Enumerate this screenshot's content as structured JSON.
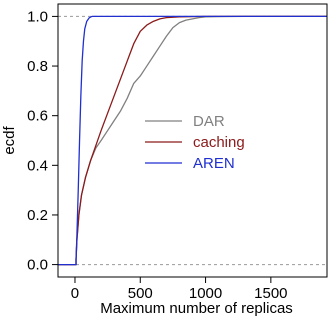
{
  "chart_data": {
    "type": "line",
    "xlabel": "Maximum number of replicas",
    "ylabel": "ecdf",
    "xlim": [
      -130,
      1930
    ],
    "ylim": [
      -0.05,
      1.05
    ],
    "x_ticks": [
      0,
      500,
      1000,
      1500
    ],
    "x_tick_labels": [
      "0",
      "500",
      "1000",
      "1500"
    ],
    "y_ticks": [
      0.0,
      0.2,
      0.4,
      0.6,
      0.8,
      1.0
    ],
    "y_tick_labels": [
      "0.0",
      "0.2",
      "0.4",
      "0.6",
      "0.8",
      "1.0"
    ],
    "reference_lines": [
      0,
      1
    ],
    "legend_position": "center-right",
    "series": [
      {
        "name": "DAR",
        "color": "#808080",
        "x": [
          -130,
          8,
          8,
          15,
          30,
          50,
          80,
          120,
          160,
          200,
          250,
          300,
          350,
          400,
          450,
          500,
          550,
          600,
          650,
          700,
          750,
          800,
          850,
          900,
          950,
          1000,
          1100,
          1300,
          1930
        ],
        "y": [
          0,
          0,
          0.02,
          0.1,
          0.2,
          0.28,
          0.35,
          0.42,
          0.47,
          0.5,
          0.54,
          0.58,
          0.62,
          0.67,
          0.73,
          0.76,
          0.8,
          0.84,
          0.88,
          0.92,
          0.955,
          0.975,
          0.985,
          0.99,
          0.995,
          0.998,
          0.999,
          1.0,
          1.0
        ]
      },
      {
        "name": "caching",
        "color": "#8b1a1a",
        "x": [
          -130,
          8,
          8,
          15,
          30,
          50,
          80,
          120,
          160,
          200,
          250,
          300,
          350,
          400,
          450,
          500,
          550,
          600,
          650,
          700,
          800,
          900,
          1000,
          1930
        ],
        "y": [
          0,
          0,
          0.02,
          0.1,
          0.2,
          0.28,
          0.35,
          0.42,
          0.48,
          0.54,
          0.61,
          0.68,
          0.75,
          0.82,
          0.89,
          0.94,
          0.965,
          0.98,
          0.99,
          0.995,
          0.998,
          0.999,
          1.0,
          1.0
        ]
      },
      {
        "name": "AREN",
        "color": "#1f2fd0",
        "x": [
          -130,
          8,
          8,
          15,
          25,
          35,
          45,
          55,
          65,
          75,
          90,
          110,
          130,
          160,
          220,
          1930
        ],
        "y": [
          0,
          0,
          0.02,
          0.12,
          0.3,
          0.5,
          0.68,
          0.82,
          0.9,
          0.95,
          0.98,
          0.995,
          1.0,
          1.0,
          1.0,
          1.0
        ]
      }
    ]
  }
}
